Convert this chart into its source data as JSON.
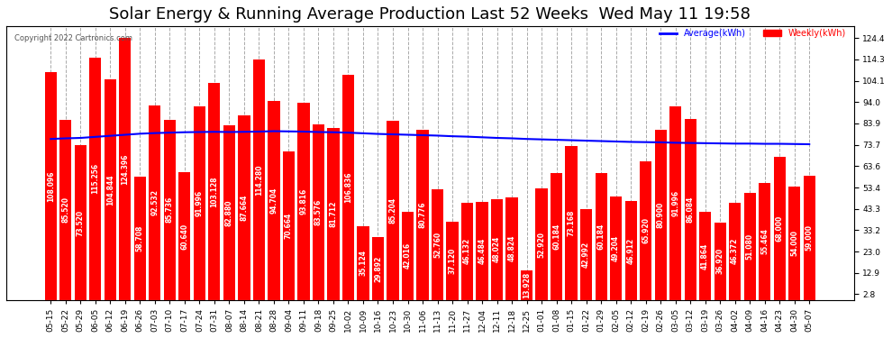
{
  "title": "Solar Energy & Running Average Production Last 52 Weeks  Wed May 11 19:58",
  "copyright": "Copyright 2022 Cartronics.com",
  "bar_color": "#ff0000",
  "avg_line_color": "#0000ff",
  "background_color": "#ffffff",
  "grid_color": "#aaaaaa",
  "legend_avg_color": "#0000ff",
  "legend_weekly_color": "#ff0000",
  "categories": [
    "05-15",
    "05-22",
    "05-29",
    "06-05",
    "06-12",
    "06-19",
    "06-26",
    "07-03",
    "07-10",
    "07-17",
    "07-24",
    "07-31",
    "08-07",
    "08-14",
    "08-21",
    "08-28",
    "09-04",
    "09-11",
    "09-18",
    "09-25",
    "10-02",
    "10-09",
    "10-16",
    "10-23",
    "10-30",
    "11-06",
    "11-13",
    "11-20",
    "11-27",
    "12-04",
    "12-11",
    "12-18",
    "12-25",
    "01-01",
    "01-08",
    "01-15",
    "01-22",
    "01-29",
    "02-05",
    "02-12",
    "02-19",
    "02-26",
    "03-05",
    "03-12",
    "03-19",
    "03-26",
    "04-02",
    "04-09",
    "04-16",
    "04-23",
    "04-30",
    "05-07"
  ],
  "weekly_values": [
    108.096,
    85.52,
    73.52,
    115.256,
    104.844,
    124.396,
    58.708,
    92.532,
    85.736,
    60.64,
    91.996,
    103.128,
    82.88,
    87.664,
    114.28,
    94.704,
    70.664,
    93.816,
    83.576,
    81.712,
    106.836,
    35.124,
    29.892,
    85.204,
    42.016,
    80.776,
    52.76,
    37.12,
    46.132,
    46.484,
    48.024,
    48.824,
    13.928,
    52.92,
    60.184,
    73.168,
    42.992,
    60.184,
    49.204,
    46.912,
    65.92,
    80.9,
    91.996,
    86.084,
    41.864,
    36.92,
    46.372,
    51.08,
    55.464,
    68.0,
    54.0,
    59.0
  ],
  "avg_values": [
    76.5,
    76.8,
    77.0,
    77.5,
    78.0,
    78.5,
    79.0,
    79.3,
    79.5,
    79.7,
    79.8,
    79.9,
    79.8,
    79.9,
    80.0,
    80.2,
    80.1,
    80.0,
    79.8,
    79.7,
    79.5,
    79.2,
    78.9,
    78.7,
    78.5,
    78.3,
    78.1,
    77.8,
    77.6,
    77.3,
    77.0,
    76.8,
    76.5,
    76.3,
    76.1,
    75.9,
    75.7,
    75.5,
    75.3,
    75.1,
    75.0,
    74.9,
    74.7,
    74.6,
    74.5,
    74.4,
    74.3,
    74.3,
    74.2,
    74.2,
    74.1,
    74.0
  ],
  "yticks": [
    2.8,
    12.9,
    23.0,
    33.2,
    43.3,
    53.4,
    63.6,
    73.7,
    83.9,
    94.0,
    104.1,
    114.3,
    124.4
  ],
  "ylim": [
    0,
    130
  ],
  "title_fontsize": 13,
  "tick_fontsize": 6.5,
  "bar_value_fontsize": 5.5
}
